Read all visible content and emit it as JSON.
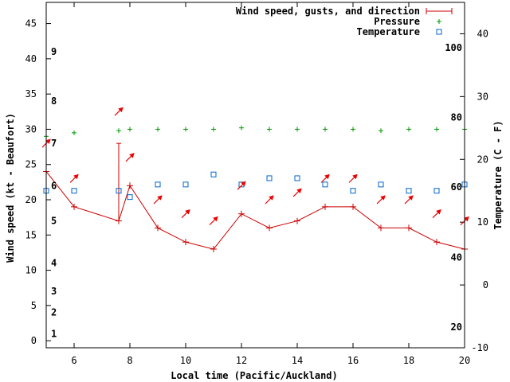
{
  "chart_data": {
    "type": "line",
    "title": "",
    "xlabel": "Local time (Pacific/Auckland)",
    "ylabel_left": "Wind speed (kt - Beaufort)",
    "ylabel_right": "Temperature (C - F)",
    "xlim": [
      5,
      20
    ],
    "ylim_left": [
      -1,
      48
    ],
    "ylim_right_c": [
      -10,
      45
    ],
    "x_ticks": [
      6,
      8,
      10,
      12,
      14,
      16,
      18,
      20
    ],
    "x_tick_labels": [
      "6",
      "8",
      "10",
      "12",
      "14",
      "16",
      "18",
      "20"
    ],
    "y_ticks_left": [
      0,
      5,
      10,
      15,
      20,
      25,
      30,
      35,
      40,
      45
    ],
    "y_tick_labels_left": [
      "0",
      "5",
      "10",
      "15",
      "20",
      "25",
      "30",
      "35",
      "40",
      "45"
    ],
    "y_ticks_right_c": [
      -10,
      0,
      10,
      20,
      30,
      40
    ],
    "y_tick_labels_right_c": [
      "-10",
      "0",
      "10",
      "20",
      "30",
      "40"
    ],
    "fahrenheit_labels": [
      {
        "text": "20",
        "c": -6.7
      },
      {
        "text": "40",
        "c": 4.4
      },
      {
        "text": "60",
        "c": 15.6
      },
      {
        "text": "80",
        "c": 26.7
      },
      {
        "text": "100",
        "c": 37.8
      }
    ],
    "beaufort_labels": [
      {
        "text": "1",
        "kt": 1
      },
      {
        "text": "2",
        "kt": 4
      },
      {
        "text": "3",
        "kt": 7
      },
      {
        "text": "4",
        "kt": 11
      },
      {
        "text": "5",
        "kt": 17
      },
      {
        "text": "6",
        "kt": 22
      },
      {
        "text": "7",
        "kt": 28
      },
      {
        "text": "8",
        "kt": 34
      },
      {
        "text": "9",
        "kt": 41
      }
    ],
    "legend": [
      {
        "label": "Wind speed, gusts, and direction",
        "color": "#cc0000",
        "marker": "line-plus"
      },
      {
        "label": "Pressure",
        "color": "#009900",
        "marker": "plus"
      },
      {
        "label": "Temperature",
        "color": "#0066cc",
        "marker": "square"
      }
    ],
    "series": [
      {
        "name": "Wind speed, gusts, and direction",
        "axis": "left",
        "color": "#cc0000",
        "x": [
          5,
          6,
          7.6,
          8,
          9,
          10,
          11,
          12,
          13,
          14,
          15,
          16,
          17,
          18,
          19,
          20
        ],
        "values": [
          24,
          19,
          17,
          22,
          16,
          14,
          13,
          18,
          16,
          17,
          19,
          19,
          16,
          16,
          14,
          13
        ],
        "gust": {
          "x": 7.6,
          "low": 17,
          "high": 28
        }
      },
      {
        "name": "Pressure",
        "axis": "left",
        "color": "#009900",
        "x": [
          5,
          6,
          7.6,
          8,
          9,
          10,
          11,
          12,
          13,
          14,
          15,
          16,
          17,
          18,
          19,
          20
        ],
        "values": [
          29,
          29.5,
          29.8,
          30,
          30,
          30,
          30,
          30.2,
          30,
          30,
          30,
          30,
          29.8,
          30,
          30,
          30
        ]
      },
      {
        "name": "Temperature",
        "axis": "right",
        "unit": "C",
        "color": "#0066cc",
        "x": [
          5,
          6,
          7.6,
          8,
          9,
          10,
          11,
          12,
          13,
          14,
          15,
          16,
          17,
          18,
          19,
          20
        ],
        "values": [
          15,
          15,
          15,
          14,
          16,
          16,
          17.6,
          16,
          17,
          17,
          16,
          15,
          16,
          15,
          15,
          16
        ]
      },
      {
        "name": "Wind direction arrows",
        "axis": "left",
        "color": "#ee0000",
        "x": [
          5,
          6,
          7.6,
          8,
          9,
          10,
          11,
          12,
          13,
          14,
          15,
          16,
          17,
          18,
          19,
          20
        ],
        "values": [
          28,
          23,
          32.5,
          26,
          20,
          18,
          17,
          22,
          20,
          21,
          23,
          23,
          20,
          20,
          18,
          17
        ],
        "direction_deg": [
          45,
          45,
          45,
          45,
          45,
          45,
          45,
          45,
          45,
          45,
          45,
          45,
          45,
          45,
          45,
          45
        ]
      }
    ]
  }
}
